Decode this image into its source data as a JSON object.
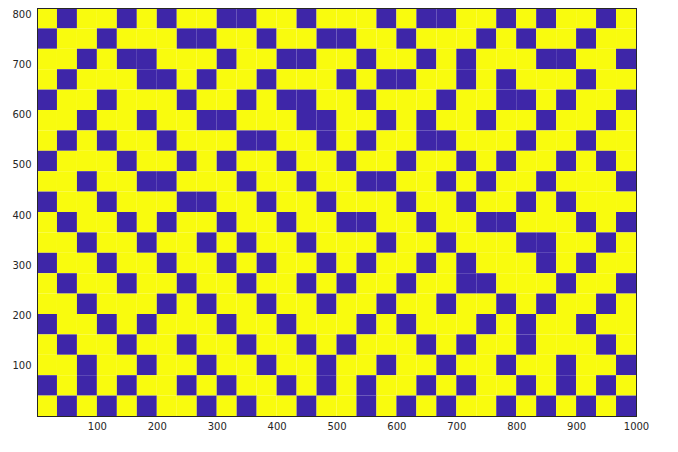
{
  "chart_data": {
    "type": "heatmap",
    "xlim": [
      0,
      1000
    ],
    "xticks": [
      100,
      200,
      300,
      400,
      500,
      600,
      700,
      800,
      900,
      1000
    ],
    "ylim": [
      0,
      812
    ],
    "yticks": [
      100,
      200,
      300,
      400,
      500,
      600,
      700,
      800
    ],
    "colors": [
      "#3e26a8",
      "#f9fb0e"
    ],
    "cells": [
      [
        1,
        0,
        1,
        1,
        0,
        1,
        0,
        1,
        1,
        0,
        0,
        1,
        1,
        0,
        1,
        1,
        1,
        0,
        1,
        0,
        0,
        1,
        1,
        0,
        1,
        0,
        1,
        1,
        0,
        1
      ],
      [
        0,
        1,
        1,
        0,
        1,
        1,
        1,
        0,
        0,
        1,
        1,
        0,
        1,
        1,
        0,
        0,
        1,
        1,
        0,
        1,
        1,
        1,
        0,
        1,
        0,
        1,
        1,
        0,
        1,
        1
      ],
      [
        1,
        1,
        0,
        1,
        0,
        0,
        1,
        1,
        1,
        0,
        1,
        1,
        0,
        0,
        1,
        1,
        0,
        1,
        1,
        0,
        1,
        0,
        1,
        1,
        1,
        0,
        0,
        1,
        1,
        0
      ],
      [
        1,
        0,
        1,
        1,
        1,
        0,
        0,
        1,
        0,
        1,
        1,
        0,
        1,
        1,
        1,
        0,
        1,
        0,
        0,
        1,
        1,
        0,
        1,
        0,
        1,
        1,
        1,
        0,
        1,
        1
      ],
      [
        0,
        1,
        1,
        0,
        1,
        1,
        1,
        0,
        1,
        1,
        0,
        1,
        0,
        0,
        1,
        1,
        0,
        1,
        1,
        1,
        0,
        1,
        1,
        0,
        0,
        1,
        0,
        1,
        1,
        0
      ],
      [
        1,
        1,
        0,
        1,
        1,
        0,
        1,
        1,
        0,
        0,
        1,
        1,
        1,
        0,
        0,
        1,
        1,
        0,
        1,
        0,
        1,
        1,
        0,
        1,
        1,
        0,
        1,
        1,
        0,
        1
      ],
      [
        1,
        0,
        1,
        0,
        1,
        1,
        0,
        1,
        1,
        1,
        0,
        0,
        1,
        1,
        0,
        1,
        0,
        1,
        1,
        0,
        0,
        1,
        1,
        1,
        0,
        1,
        1,
        0,
        1,
        1
      ],
      [
        0,
        1,
        1,
        1,
        0,
        1,
        1,
        0,
        1,
        0,
        1,
        1,
        0,
        1,
        1,
        0,
        1,
        1,
        0,
        1,
        1,
        0,
        1,
        0,
        1,
        1,
        0,
        1,
        0,
        1
      ],
      [
        1,
        1,
        0,
        1,
        1,
        0,
        0,
        1,
        1,
        1,
        0,
        1,
        1,
        0,
        1,
        1,
        0,
        0,
        1,
        1,
        0,
        1,
        0,
        1,
        1,
        0,
        1,
        1,
        1,
        0
      ],
      [
        0,
        1,
        1,
        0,
        1,
        1,
        1,
        0,
        0,
        1,
        1,
        0,
        1,
        1,
        0,
        1,
        1,
        1,
        0,
        1,
        1,
        0,
        1,
        1,
        0,
        1,
        0,
        1,
        1,
        1
      ],
      [
        1,
        0,
        1,
        1,
        0,
        1,
        0,
        1,
        1,
        0,
        1,
        1,
        0,
        1,
        1,
        0,
        0,
        1,
        1,
        0,
        1,
        1,
        0,
        0,
        1,
        1,
        1,
        0,
        1,
        0
      ],
      [
        1,
        1,
        0,
        1,
        1,
        0,
        1,
        1,
        0,
        1,
        0,
        1,
        1,
        0,
        1,
        1,
        1,
        0,
        1,
        1,
        0,
        1,
        1,
        1,
        0,
        0,
        1,
        1,
        0,
        1
      ],
      [
        0,
        1,
        1,
        0,
        1,
        1,
        0,
        1,
        1,
        0,
        1,
        0,
        1,
        1,
        0,
        1,
        0,
        1,
        1,
        0,
        1,
        0,
        1,
        1,
        1,
        0,
        1,
        0,
        1,
        1
      ],
      [
        1,
        0,
        1,
        1,
        0,
        1,
        1,
        0,
        1,
        1,
        0,
        1,
        1,
        0,
        1,
        0,
        1,
        1,
        0,
        1,
        1,
        0,
        0,
        1,
        1,
        1,
        0,
        1,
        1,
        0
      ],
      [
        1,
        1,
        0,
        1,
        1,
        1,
        0,
        1,
        0,
        1,
        1,
        0,
        1,
        1,
        0,
        1,
        1,
        0,
        1,
        1,
        0,
        1,
        1,
        0,
        1,
        0,
        1,
        1,
        0,
        1
      ],
      [
        0,
        1,
        1,
        0,
        1,
        0,
        1,
        1,
        1,
        0,
        1,
        1,
        0,
        1,
        1,
        1,
        0,
        1,
        0,
        1,
        1,
        1,
        0,
        1,
        0,
        1,
        1,
        0,
        1,
        1
      ],
      [
        1,
        0,
        1,
        1,
        0,
        1,
        1,
        0,
        1,
        1,
        0,
        1,
        1,
        0,
        1,
        0,
        1,
        1,
        1,
        0,
        1,
        0,
        1,
        1,
        0,
        1,
        1,
        1,
        0,
        1
      ],
      [
        1,
        1,
        0,
        1,
        1,
        0,
        1,
        1,
        0,
        1,
        1,
        0,
        1,
        1,
        0,
        1,
        1,
        0,
        1,
        1,
        0,
        1,
        1,
        0,
        1,
        1,
        0,
        1,
        1,
        0
      ],
      [
        0,
        1,
        0,
        1,
        0,
        1,
        1,
        0,
        1,
        0,
        1,
        1,
        0,
        1,
        0,
        1,
        0,
        1,
        1,
        0,
        1,
        0,
        1,
        1,
        0,
        1,
        0,
        1,
        0,
        1
      ],
      [
        1,
        0,
        1,
        0,
        1,
        0,
        1,
        1,
        0,
        1,
        0,
        1,
        1,
        0,
        1,
        1,
        0,
        1,
        0,
        1,
        0,
        1,
        1,
        0,
        1,
        0,
        1,
        0,
        1,
        0
      ]
    ]
  }
}
